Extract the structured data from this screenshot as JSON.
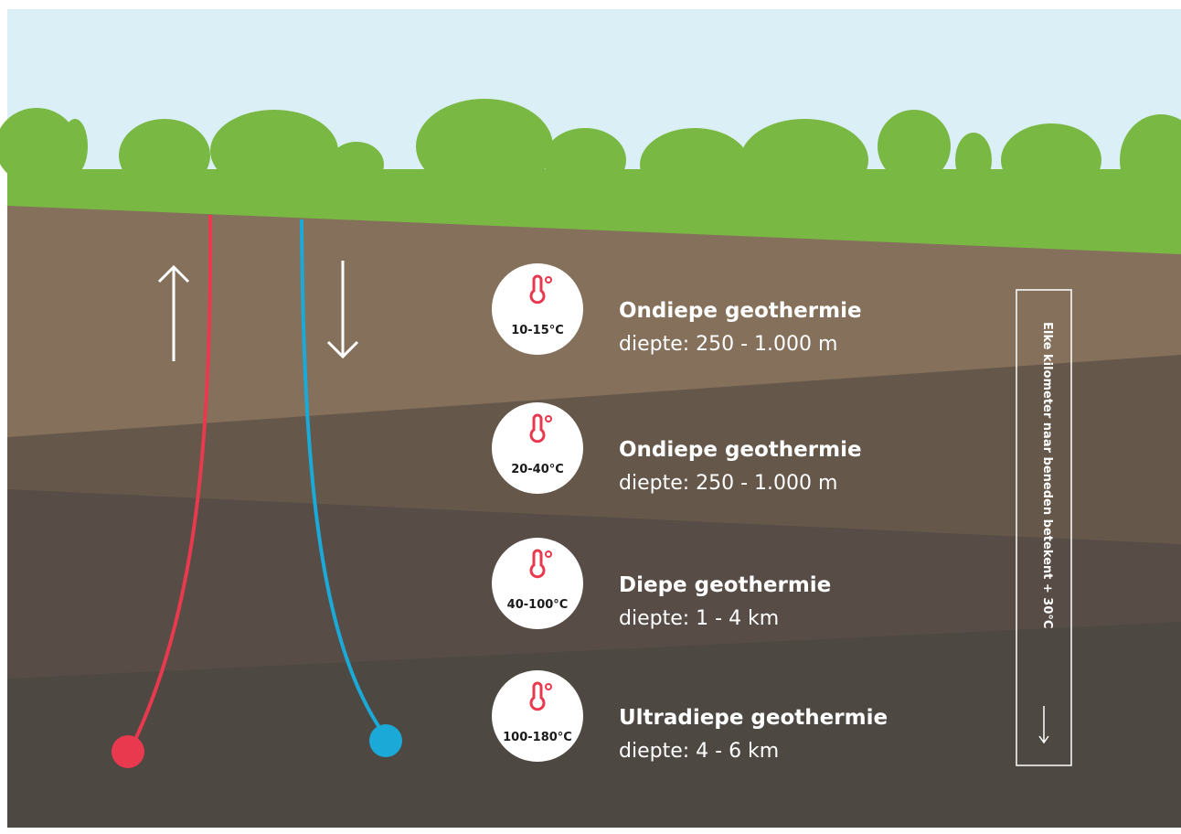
{
  "layers": [
    {
      "temperature": "10-15°C",
      "title": "Ondiepe geothermie",
      "depth": "diepte: 250 - 1.000 m"
    },
    {
      "temperature": "20-40°C",
      "title": "Ondiepe geothermie",
      "depth": "diepte: 250 - 1.000 m"
    },
    {
      "temperature": "40-100°C",
      "title": "Diepe geothermie",
      "depth": "diepte: 1 - 4 km"
    },
    {
      "temperature": "100-180°C",
      "title": "Ultradiepe geothermie",
      "depth": "diepte: 4 - 6 km"
    }
  ],
  "side_note": "Elke kilometer naar beneden betekent + 30°C"
}
